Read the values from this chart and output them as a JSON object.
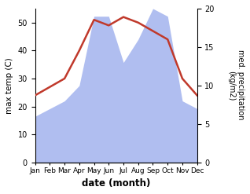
{
  "months": [
    "Jan",
    "Feb",
    "Mar",
    "Apr",
    "May",
    "Jun",
    "Jul",
    "Aug",
    "Sep",
    "Oct",
    "Nov",
    "Dec"
  ],
  "month_x": [
    1,
    2,
    3,
    4,
    5,
    6,
    7,
    8,
    9,
    10,
    11,
    12
  ],
  "temp": [
    24,
    27,
    30,
    40,
    51,
    49,
    52,
    50,
    47,
    44,
    30,
    24
  ],
  "precip": [
    6,
    7,
    8,
    10,
    19,
    19,
    13,
    16,
    20,
    19,
    8,
    7
  ],
  "temp_color": "#c0392b",
  "precip_fill_color": "#b0bef0",
  "ylabel_left": "max temp (C)",
  "ylabel_right": "med. precipitation \n(kg/m2)",
  "xlabel": "date (month)",
  "ylim_left": [
    0,
    55
  ],
  "ylim_right": [
    0,
    20
  ],
  "yticks_left": [
    0,
    10,
    20,
    30,
    40,
    50
  ],
  "yticks_right": [
    0,
    5,
    10,
    15,
    20
  ],
  "bg_color": "#ffffff"
}
